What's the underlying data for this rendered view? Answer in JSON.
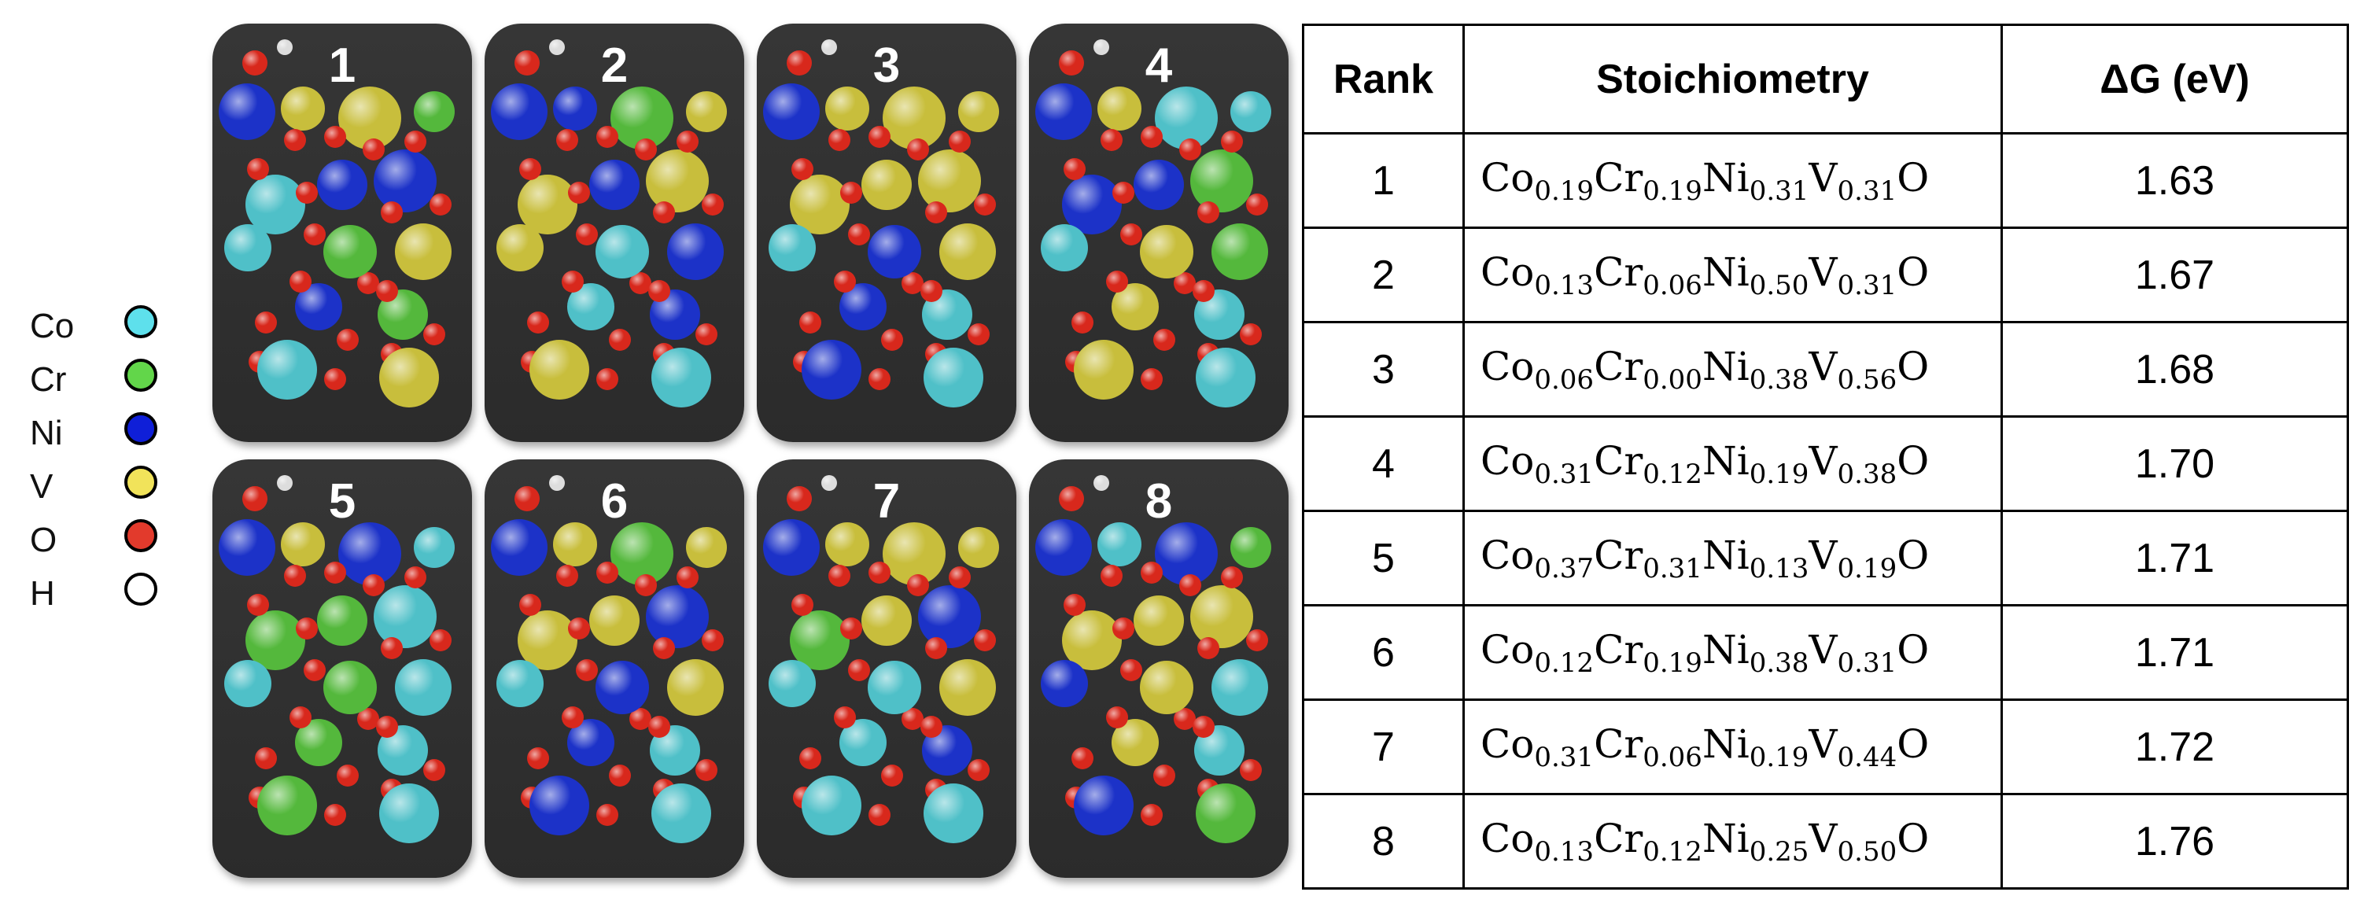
{
  "legend": [
    {
      "label": "Co",
      "color": "#5ee0ec"
    },
    {
      "label": "Cr",
      "color": "#62d64a"
    },
    {
      "label": "Ni",
      "color": "#0f1fd8"
    },
    {
      "label": "V",
      "color": "#f1e35a"
    },
    {
      "label": "O",
      "color": "#e23a2c"
    },
    {
      "label": "H",
      "color": "#ffffff"
    }
  ],
  "atom_colors": {
    "Co": "#4fc0c8",
    "Cr": "#54b83c",
    "Ni": "#1c32c8",
    "V": "#c8be3c",
    "O": "#d8281c",
    "H": "#dddddd"
  },
  "panels": [
    {
      "label": "1",
      "atoms": [
        "Ni",
        "V",
        "V",
        "Cr",
        "Ni",
        "Co",
        "Ni",
        "Cr",
        "Co",
        "V",
        "Ni",
        "Cr",
        "Co",
        "V"
      ]
    },
    {
      "label": "2",
      "atoms": [
        "Ni",
        "Ni",
        "Cr",
        "V",
        "Ni",
        "V",
        "V",
        "Co",
        "V",
        "Ni",
        "Co",
        "Ni",
        "V",
        "Co"
      ]
    },
    {
      "label": "3",
      "atoms": [
        "Ni",
        "V",
        "V",
        "V",
        "V",
        "V",
        "V",
        "Ni",
        "Co",
        "V",
        "Ni",
        "Co",
        "Ni",
        "Co"
      ]
    },
    {
      "label": "4",
      "atoms": [
        "Ni",
        "V",
        "Co",
        "Co",
        "Ni",
        "Ni",
        "Cr",
        "V",
        "Co",
        "Cr",
        "V",
        "Co",
        "V",
        "Co"
      ]
    },
    {
      "label": "5",
      "atoms": [
        "Ni",
        "V",
        "Ni",
        "Co",
        "Cr",
        "Cr",
        "Co",
        "Cr",
        "Co",
        "Co",
        "Cr",
        "Co",
        "Cr",
        "Co"
      ]
    },
    {
      "label": "6",
      "atoms": [
        "Ni",
        "V",
        "Cr",
        "V",
        "V",
        "V",
        "Ni",
        "Ni",
        "Co",
        "V",
        "Ni",
        "Co",
        "Ni",
        "Co"
      ]
    },
    {
      "label": "7",
      "atoms": [
        "Ni",
        "V",
        "V",
        "V",
        "V",
        "Cr",
        "Ni",
        "Co",
        "Co",
        "V",
        "Co",
        "Ni",
        "Co",
        "Co"
      ]
    },
    {
      "label": "8",
      "atoms": [
        "Ni",
        "Co",
        "Ni",
        "Cr",
        "V",
        "V",
        "V",
        "V",
        "Ni",
        "Co",
        "V",
        "Co",
        "Ni",
        "Cr"
      ]
    }
  ],
  "table": {
    "headers": [
      "Rank",
      "Stoichiometry",
      "ΔG (eV)"
    ],
    "rows": [
      {
        "rank": "1",
        "co": "0.19",
        "cr": "0.19",
        "ni": "0.31",
        "v": "0.31",
        "dg": "1.63"
      },
      {
        "rank": "2",
        "co": "0.13",
        "cr": "0.06",
        "ni": "0.50",
        "v": "0.31",
        "dg": "1.67"
      },
      {
        "rank": "3",
        "co": "0.06",
        "cr": "0.00",
        "ni": "0.38",
        "v": "0.56",
        "dg": "1.68"
      },
      {
        "rank": "4",
        "co": "0.31",
        "cr": "0.12",
        "ni": "0.19",
        "v": "0.38",
        "dg": "1.70"
      },
      {
        "rank": "5",
        "co": "0.37",
        "cr": "0.31",
        "ni": "0.13",
        "v": "0.19",
        "dg": "1.71"
      },
      {
        "rank": "6",
        "co": "0.12",
        "cr": "0.19",
        "ni": "0.38",
        "v": "0.31",
        "dg": "1.71"
      },
      {
        "rank": "7",
        "co": "0.31",
        "cr": "0.06",
        "ni": "0.19",
        "v": "0.44",
        "dg": "1.72"
      },
      {
        "rank": "8",
        "co": "0.13",
        "cr": "0.12",
        "ni": "0.25",
        "v": "0.50",
        "dg": "1.76"
      }
    ],
    "element_symbols": {
      "co": "Co",
      "cr": "Cr",
      "ni": "Ni",
      "v": "V",
      "o": "O"
    }
  }
}
